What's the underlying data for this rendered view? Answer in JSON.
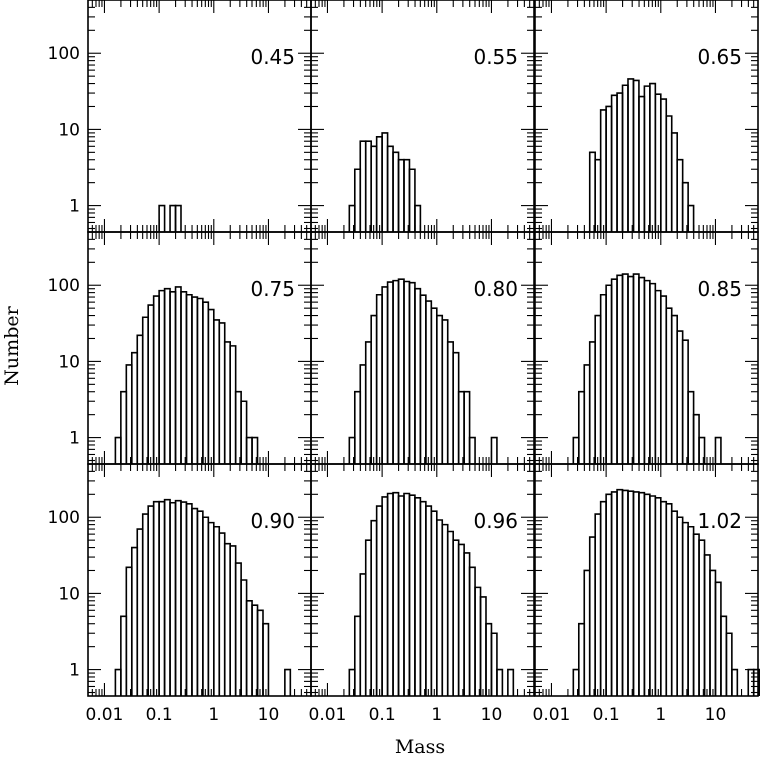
{
  "chart_data": {
    "type": "histogram-grid",
    "xlabel": "Mass",
    "ylabel": "Number",
    "x_scale": "log",
    "y_scale": "log",
    "xlim": [
      0.005,
      60
    ],
    "ylim": [
      0.45,
      500
    ],
    "x_ticks": [
      0.01,
      0.1,
      1,
      10
    ],
    "x_tick_labels": [
      "0.01",
      "0.1",
      "1",
      "10"
    ],
    "y_ticks": [
      1,
      10,
      100
    ],
    "y_tick_labels": [
      "1",
      "10",
      "100"
    ],
    "bin_edges_log10": {
      "start": -2.0,
      "width": 0.1
    },
    "panels": [
      {
        "label": "0.45",
        "counts": [
          0,
          0,
          0,
          0,
          0,
          0,
          0,
          0,
          0,
          0,
          1,
          0,
          1,
          1,
          0,
          0,
          0,
          0,
          0,
          0,
          0,
          0,
          0,
          0,
          0,
          0,
          0,
          0,
          0,
          0,
          0,
          0,
          0,
          0,
          0,
          0,
          0,
          0
        ]
      },
      {
        "label": "0.55",
        "counts": [
          0,
          0,
          0,
          0,
          1,
          3,
          7,
          7,
          6,
          8,
          9,
          6,
          5,
          4,
          4,
          3,
          1,
          0,
          0,
          0,
          0,
          0,
          0,
          0,
          0,
          0,
          0,
          0,
          0,
          0,
          0,
          0,
          0,
          0,
          0,
          0,
          0,
          0
        ]
      },
      {
        "label": "0.65",
        "counts": [
          0,
          0,
          0,
          0,
          0,
          0,
          0,
          5,
          4,
          18,
          20,
          28,
          30,
          38,
          46,
          44,
          27,
          37,
          40,
          29,
          25,
          15,
          9,
          4,
          2,
          1,
          0,
          0,
          0,
          0,
          0,
          0,
          0,
          0,
          0,
          0,
          0,
          0
        ]
      },
      {
        "label": "0.75",
        "counts": [
          0,
          0,
          1,
          4,
          9,
          13,
          22,
          38,
          55,
          72,
          85,
          90,
          82,
          95,
          82,
          75,
          70,
          67,
          60,
          48,
          35,
          32,
          18,
          16,
          4,
          3,
          1,
          1,
          0,
          0,
          0,
          0,
          0,
          0,
          0,
          0,
          0,
          0
        ]
      },
      {
        "label": "0.80",
        "counts": [
          0,
          0,
          0,
          0,
          1,
          4,
          9,
          18,
          40,
          75,
          95,
          110,
          115,
          120,
          112,
          108,
          90,
          74,
          62,
          50,
          40,
          35,
          18,
          13,
          4,
          4,
          1,
          0,
          0,
          0,
          1,
          0,
          0,
          0,
          0,
          0,
          0,
          0
        ]
      },
      {
        "label": "0.85",
        "counts": [
          0,
          0,
          0,
          0,
          1,
          4,
          9,
          18,
          40,
          75,
          100,
          120,
          135,
          140,
          130,
          140,
          126,
          115,
          105,
          85,
          72,
          50,
          40,
          25,
          19,
          4,
          2,
          1,
          0,
          0,
          1,
          0,
          0,
          0,
          0,
          0,
          0,
          0
        ]
      },
      {
        "label": "0.90",
        "counts": [
          0,
          0,
          1,
          5,
          22,
          40,
          70,
          110,
          140,
          160,
          160,
          170,
          155,
          165,
          158,
          150,
          130,
          120,
          100,
          85,
          75,
          62,
          45,
          42,
          25,
          15,
          8,
          7,
          6,
          4,
          0,
          0,
          0,
          1,
          0,
          0,
          0,
          0
        ]
      },
      {
        "label": "0.96",
        "counts": [
          0,
          0,
          0,
          0,
          1,
          5,
          18,
          50,
          90,
          140,
          185,
          205,
          210,
          190,
          205,
          195,
          180,
          160,
          140,
          120,
          92,
          80,
          65,
          50,
          44,
          34,
          22,
          12,
          9,
          4,
          3,
          1,
          0,
          1,
          0,
          0,
          0,
          0
        ]
      },
      {
        "label": "1.02",
        "counts": [
          0,
          0,
          0,
          0,
          1,
          4,
          20,
          55,
          110,
          160,
          200,
          215,
          230,
          225,
          220,
          215,
          210,
          200,
          190,
          180,
          160,
          150,
          120,
          100,
          85,
          75,
          60,
          50,
          32,
          20,
          14,
          5,
          3,
          1,
          0,
          0,
          1,
          1
        ]
      }
    ]
  }
}
